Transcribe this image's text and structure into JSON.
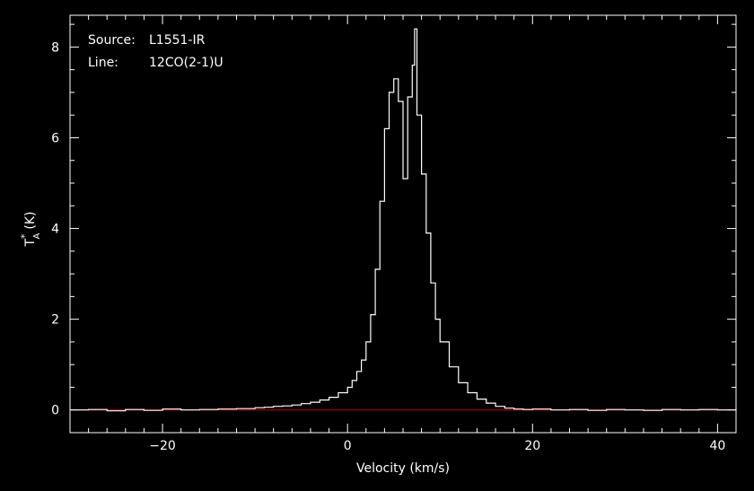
{
  "chart_data": {
    "type": "line",
    "step": true,
    "annotations": [
      {
        "key": "Source:",
        "value": "L1551-IR"
      },
      {
        "key": "Line:",
        "value": "12CO(2-1)U"
      }
    ],
    "xlabel": "Velocity (km/s)",
    "ylabel_main": "T",
    "ylabel_sup": "*",
    "ylabel_sub": "A",
    "ylabel_unit": "(K)",
    "xlim": [
      -30,
      42
    ],
    "ylim": [
      -0.5,
      8.7
    ],
    "xticks": [
      -20,
      0,
      20,
      40
    ],
    "xtick_labels": [
      "−20",
      "0",
      "20",
      "40"
    ],
    "yticks": [
      0,
      2,
      4,
      6,
      8
    ],
    "ytick_labels": [
      "0",
      "2",
      "4",
      "6",
      "8"
    ],
    "baseline": {
      "y": 0,
      "color": "#cc0000"
    },
    "line_color": "#ffffff",
    "spectrum": {
      "x": [
        -30,
        -28,
        -26,
        -24,
        -22,
        -20,
        -18,
        -16,
        -14,
        -12,
        -10,
        -9,
        -8,
        -7,
        -6,
        -5,
        -4,
        -3,
        -2,
        -1,
        0,
        0.5,
        1,
        1.5,
        2,
        2.5,
        3,
        3.5,
        4,
        4.5,
        5,
        5.5,
        6,
        6.5,
        7,
        7.25,
        7.5,
        8,
        8.5,
        9,
        9.5,
        10,
        11,
        12,
        13,
        14,
        15,
        16,
        17,
        18,
        19,
        20,
        22,
        24,
        26,
        28,
        30,
        32,
        34,
        36,
        38,
        40,
        42
      ],
      "y": [
        0.0,
        0.01,
        -0.02,
        0.01,
        -0.01,
        0.02,
        0.0,
        0.01,
        0.02,
        0.03,
        0.05,
        0.06,
        0.08,
        0.09,
        0.11,
        0.14,
        0.17,
        0.22,
        0.28,
        0.38,
        0.5,
        0.65,
        0.85,
        1.1,
        1.5,
        2.1,
        3.1,
        4.6,
        6.2,
        7.0,
        7.3,
        6.8,
        5.1,
        6.9,
        7.6,
        8.4,
        6.5,
        5.2,
        3.9,
        2.8,
        2.0,
        1.5,
        0.95,
        0.6,
        0.38,
        0.24,
        0.15,
        0.08,
        0.04,
        0.02,
        0.01,
        0.02,
        0.0,
        0.01,
        -0.01,
        0.01,
        0.0,
        -0.01,
        0.01,
        0.0,
        0.01,
        0.0,
        0.02
      ]
    }
  }
}
